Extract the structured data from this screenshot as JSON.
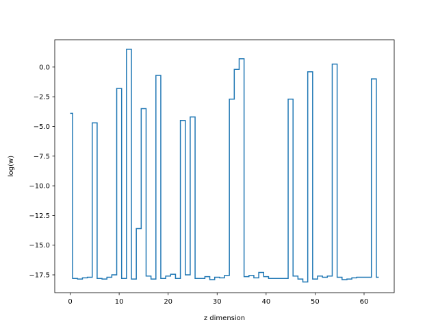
{
  "chart_data": {
    "type": "line",
    "drawstyle": "steps-mid",
    "title": "",
    "xlabel": "z dimension",
    "ylabel": "log(w)",
    "xlim": [
      -3.15,
      66.15
    ],
    "ylim": [
      -19.0,
      2.3
    ],
    "xticks": [
      0,
      10,
      20,
      30,
      40,
      50,
      60
    ],
    "yticks": [
      0.0,
      -2.5,
      -5.0,
      -7.5,
      -10.0,
      -12.5,
      -15.0,
      -17.5
    ],
    "xtick_labels": [
      "0",
      "10",
      "20",
      "30",
      "40",
      "50",
      "60"
    ],
    "ytick_labels": [
      "0.0",
      "−2.5",
      "−5.0",
      "−7.5",
      "−10.0",
      "−12.5",
      "−15.0",
      "−17.5"
    ],
    "grid": false,
    "series": [
      {
        "color": "#1f77b4",
        "x": [
          0,
          1,
          2,
          3,
          4,
          5,
          6,
          7,
          8,
          9,
          10,
          11,
          12,
          13,
          14,
          15,
          16,
          17,
          18,
          19,
          20,
          21,
          22,
          23,
          24,
          25,
          26,
          27,
          28,
          29,
          30,
          31,
          32,
          33,
          34,
          35,
          36,
          37,
          38,
          39,
          40,
          41,
          42,
          43,
          44,
          45,
          46,
          47,
          48,
          49,
          50,
          51,
          52,
          53,
          54,
          55,
          56,
          57,
          58,
          59,
          60,
          61,
          62,
          63
        ],
        "values": [
          -3.9,
          -17.8,
          -17.85,
          -17.75,
          -17.7,
          -4.7,
          -17.8,
          -17.85,
          -17.7,
          -17.5,
          -1.8,
          -17.8,
          1.5,
          -17.85,
          -13.6,
          -3.5,
          -17.6,
          -17.85,
          -0.7,
          -17.8,
          -17.6,
          -17.45,
          -17.8,
          -4.5,
          -17.5,
          -4.2,
          -17.8,
          -17.8,
          -17.65,
          -17.9,
          -17.7,
          -17.75,
          -17.55,
          -2.7,
          -0.2,
          0.7,
          -17.65,
          -17.55,
          -17.75,
          -17.3,
          -17.65,
          -17.8,
          -17.8,
          -17.8,
          -17.8,
          -2.7,
          -17.6,
          -17.85,
          -18.1,
          -0.4,
          -17.85,
          -17.6,
          -17.7,
          -17.6,
          0.25,
          -17.7,
          -17.9,
          -17.85,
          -17.75,
          -17.7,
          -17.7,
          -17.7,
          -1.0,
          -17.7
        ]
      }
    ]
  }
}
